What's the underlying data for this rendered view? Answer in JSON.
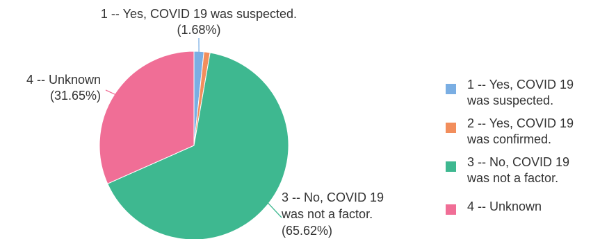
{
  "chart_data": {
    "type": "pie",
    "legend_position": "right",
    "slices": [
      {
        "label": "1 -- Yes, COVID 19 was suspected.",
        "legend_lines": [
          "1 -- Yes, COVID 19",
          "was suspected."
        ],
        "callout_lines": [
          "1 -- Yes, COVID 19 was suspected.",
          "(1.68%)"
        ],
        "value": 1.68,
        "color": "#7aaee3"
      },
      {
        "label": "2 -- Yes, COVID 19 was confirmed.",
        "legend_lines": [
          "2 -- Yes, COVID 19",
          "was confirmed."
        ],
        "callout_lines": [],
        "value": 1.05,
        "color": "#f28e5c"
      },
      {
        "label": "3 -- No, COVID 19 was not a factor.",
        "legend_lines": [
          "3 -- No, COVID 19",
          "was not a factor."
        ],
        "callout_lines": [
          "3 -- No, COVID 19",
          "was not a factor.",
          "(65.62%)"
        ],
        "value": 65.62,
        "color": "#3eb890"
      },
      {
        "label": "4 -- Unknown",
        "legend_lines": [
          "4 -- Unknown"
        ],
        "callout_lines": [
          "4 -- Unknown",
          "(31.65%)"
        ],
        "value": 31.65,
        "color": "#f06e96"
      }
    ]
  }
}
